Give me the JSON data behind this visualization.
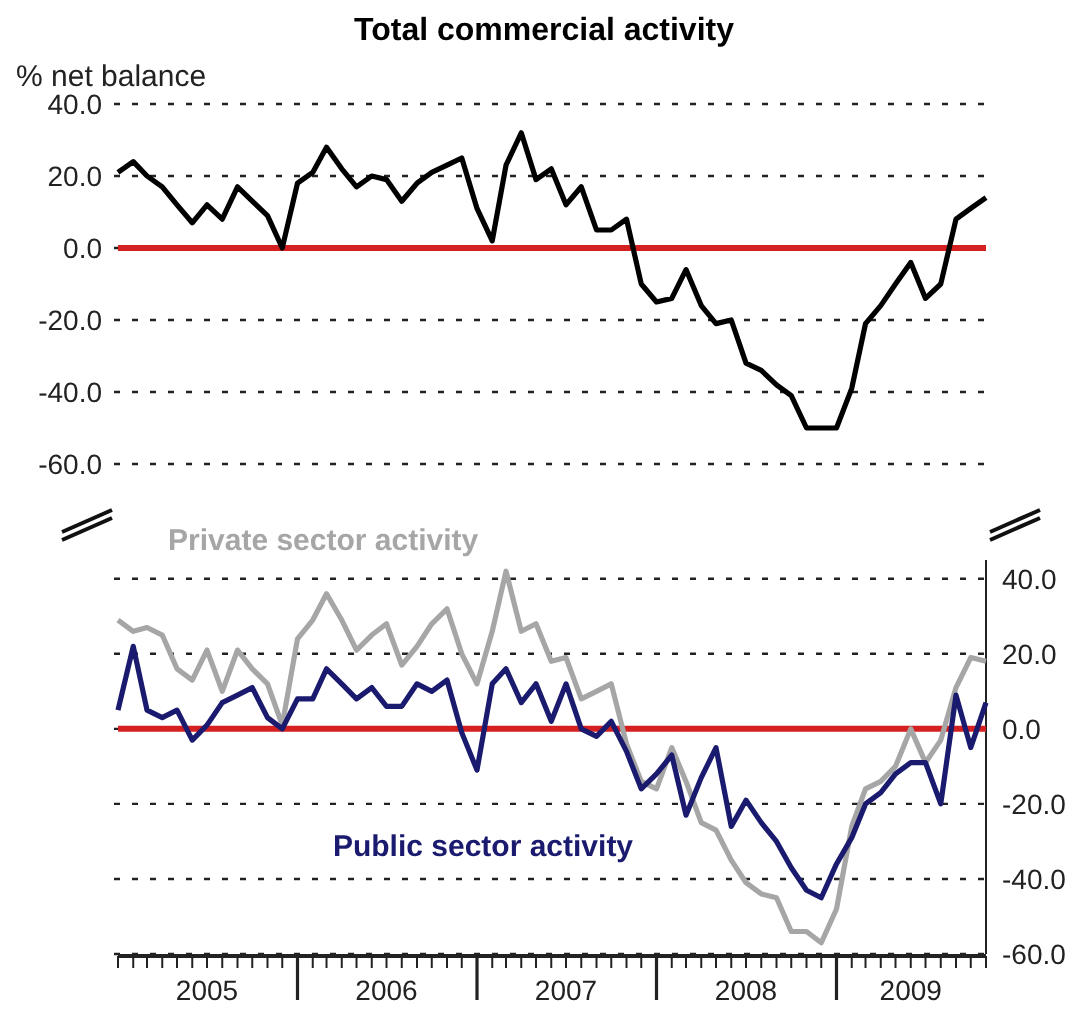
{
  "chart_data": [
    {
      "type": "line",
      "title": "Total commercial activity",
      "ylabel": "% net balance",
      "x": [
        "2005-01",
        "2005-02",
        "2005-03",
        "2005-04",
        "2005-05",
        "2005-06",
        "2005-07",
        "2005-08",
        "2005-09",
        "2005-10",
        "2005-11",
        "2005-12",
        "2006-01",
        "2006-02",
        "2006-03",
        "2006-04",
        "2006-05",
        "2006-06",
        "2006-07",
        "2006-08",
        "2006-09",
        "2006-10",
        "2006-11",
        "2006-12",
        "2007-01",
        "2007-02",
        "2007-03",
        "2007-04",
        "2007-05",
        "2007-06",
        "2007-07",
        "2007-08",
        "2007-09",
        "2007-10",
        "2007-11",
        "2007-12",
        "2008-01",
        "2008-02",
        "2008-03",
        "2008-04",
        "2008-05",
        "2008-06",
        "2008-07",
        "2008-08",
        "2008-09",
        "2008-10",
        "2008-11",
        "2008-12",
        "2009-01",
        "2009-02",
        "2009-03",
        "2009-04",
        "2009-05",
        "2009-06",
        "2009-07",
        "2009-08",
        "2009-09",
        "2009-10",
        "2009-11"
      ],
      "series": [
        {
          "color": "#000000",
          "values": [
            21,
            24,
            20,
            17,
            12,
            7,
            12,
            8,
            17,
            13,
            9,
            0,
            18,
            21,
            28,
            22,
            17,
            20,
            19,
            13,
            18,
            21,
            23,
            25,
            11,
            2,
            23,
            32,
            19,
            22,
            12,
            17,
            5,
            5,
            8,
            -10,
            -15,
            -14,
            -6,
            -16,
            -21,
            -20,
            -32,
            -34,
            -38,
            -41,
            -50,
            -50,
            -50,
            -39,
            -21,
            -16,
            -10,
            -4,
            -14,
            -10,
            8,
            11,
            14
          ]
        }
      ],
      "xlim": [
        "2005-01",
        "2009-11"
      ],
      "ylim": [
        -60,
        40
      ],
      "yticks": [
        {
          "value": 40,
          "label": "40.0"
        },
        {
          "value": 20,
          "label": "20.0"
        },
        {
          "value": 0,
          "label": "0.0"
        },
        {
          "value": -20,
          "label": "-20.0"
        },
        {
          "value": -40,
          "label": "-40.0"
        },
        {
          "value": -60,
          "label": "-60.0"
        }
      ],
      "grid": "y",
      "tick_labels": "y",
      "line_style": "solid",
      "ref_lines": [
        {
          "axis": "y",
          "value": 0,
          "color": "#d42020"
        }
      ]
    },
    {
      "type": "line",
      "x": [
        "2005-01",
        "2005-02",
        "2005-03",
        "2005-04",
        "2005-05",
        "2005-06",
        "2005-07",
        "2005-08",
        "2005-09",
        "2005-10",
        "2005-11",
        "2005-12",
        "2006-01",
        "2006-02",
        "2006-03",
        "2006-04",
        "2006-05",
        "2006-06",
        "2006-07",
        "2006-08",
        "2006-09",
        "2006-10",
        "2006-11",
        "2006-12",
        "2007-01",
        "2007-02",
        "2007-03",
        "2007-04",
        "2007-05",
        "2007-06",
        "2007-07",
        "2007-08",
        "2007-09",
        "2007-10",
        "2007-11",
        "2007-12",
        "2008-01",
        "2008-02",
        "2008-03",
        "2008-04",
        "2008-05",
        "2008-06",
        "2008-07",
        "2008-08",
        "2008-09",
        "2008-10",
        "2008-11",
        "2008-12",
        "2009-01",
        "2009-02",
        "2009-03",
        "2009-04",
        "2009-05",
        "2009-06",
        "2009-07",
        "2009-08",
        "2009-09",
        "2009-10",
        "2009-11"
      ],
      "series": [
        {
          "name": "Private sector activity",
          "color": "#a6a6a6",
          "values": [
            29,
            26,
            27,
            25,
            16,
            13,
            21,
            10,
            21,
            16,
            12,
            1,
            24,
            29,
            36,
            29,
            21,
            25,
            28,
            17,
            22,
            28,
            32,
            20,
            12,
            26,
            42,
            26,
            28,
            18,
            19,
            8,
            10,
            12,
            -4,
            -14,
            -16,
            -5,
            -14,
            -25,
            -27,
            -35,
            -41,
            -44,
            -45,
            -54,
            -54,
            -57,
            -48,
            -26,
            -16,
            -14,
            -10,
            0,
            -9,
            -3,
            11,
            19,
            18
          ]
        },
        {
          "name": "Public sector activity",
          "color": "#1a1a6e",
          "values": [
            5,
            22,
            5,
            3,
            5,
            -3,
            1,
            7,
            9,
            11,
            3,
            0,
            8,
            8,
            16,
            12,
            8,
            11,
            6,
            6,
            12,
            10,
            13,
            -1,
            -11,
            12,
            16,
            7,
            12,
            2,
            12,
            0,
            -2,
            2,
            -6,
            -16,
            -12,
            -7,
            -23,
            -13,
            -5,
            -26,
            -19,
            -25,
            -30,
            -37,
            -43,
            -45,
            -36,
            -29,
            -20,
            -17,
            -12,
            -9,
            -9,
            -20,
            9,
            -5,
            7
          ]
        }
      ],
      "xlim": [
        "2005-01",
        "2009-11"
      ],
      "ylim": [
        -60,
        45
      ],
      "xticks": [
        {
          "value": "2005-07-01",
          "label": "2005"
        },
        {
          "value": "2006-07-01",
          "label": "2006"
        },
        {
          "value": "2007-07-01",
          "label": "2007"
        },
        {
          "value": "2008-07-01",
          "label": "2008"
        },
        {
          "value": "2009-06-01",
          "label": "2009"
        }
      ],
      "yticks": [
        {
          "value": 40,
          "label": "40.0"
        },
        {
          "value": 20,
          "label": "20.0"
        },
        {
          "value": 0,
          "label": "0.0"
        },
        {
          "value": -20,
          "label": "-20.0"
        },
        {
          "value": -40,
          "label": "-40.0"
        },
        {
          "value": -60,
          "label": "-60.0"
        }
      ],
      "grid": "y",
      "line_style": "solid",
      "ref_lines": [
        {
          "axis": "y",
          "value": 0,
          "color": "#d42020"
        }
      ]
    }
  ]
}
